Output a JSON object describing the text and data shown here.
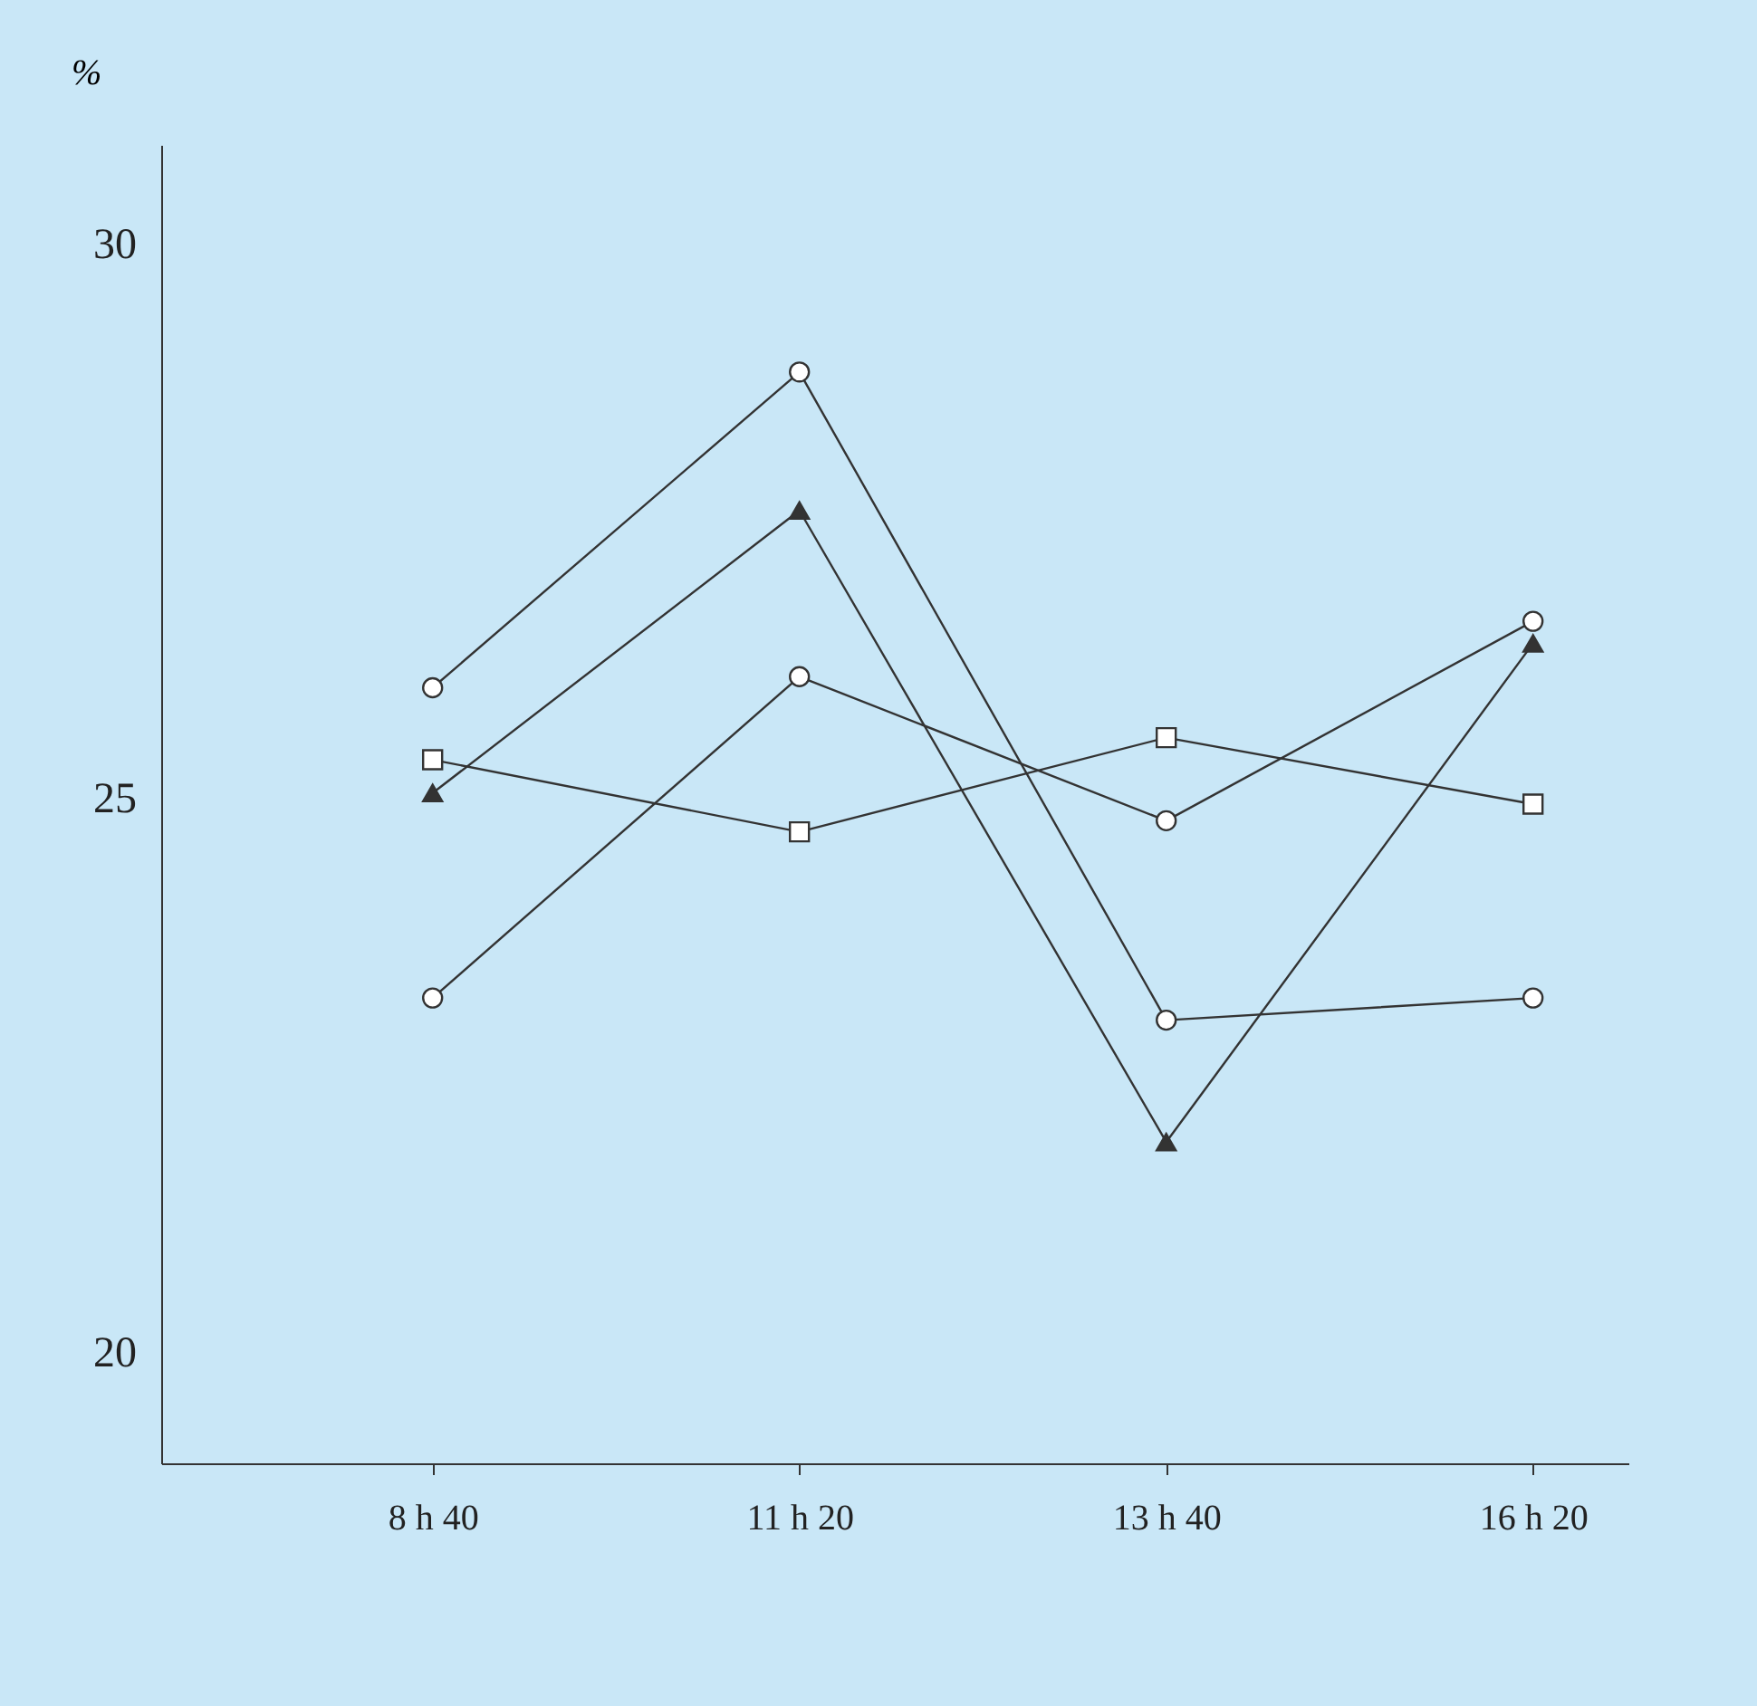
{
  "chart_data": {
    "type": "line",
    "ylabel": "%",
    "categories": [
      "8 h 40",
      "11 h 20",
      "13 h 40",
      "16 h 20"
    ],
    "series": [
      {
        "color": "#333333",
        "marker": "circle",
        "values": [
          26.0,
          28.85,
          23.0,
          23.2
        ]
      },
      {
        "color": "#333333",
        "marker": "triangle",
        "values": [
          25.05,
          27.6,
          21.9,
          26.4
        ]
      },
      {
        "color": "#333333",
        "marker": "circle",
        "values": [
          23.2,
          26.1,
          24.8,
          26.6
        ]
      },
      {
        "color": "#333333",
        "marker": "square",
        "values": [
          25.35,
          24.7,
          25.55,
          24.95
        ]
      }
    ],
    "ylim": [
      19,
      30.9
    ],
    "yticks": [
      20,
      25,
      30
    ]
  }
}
